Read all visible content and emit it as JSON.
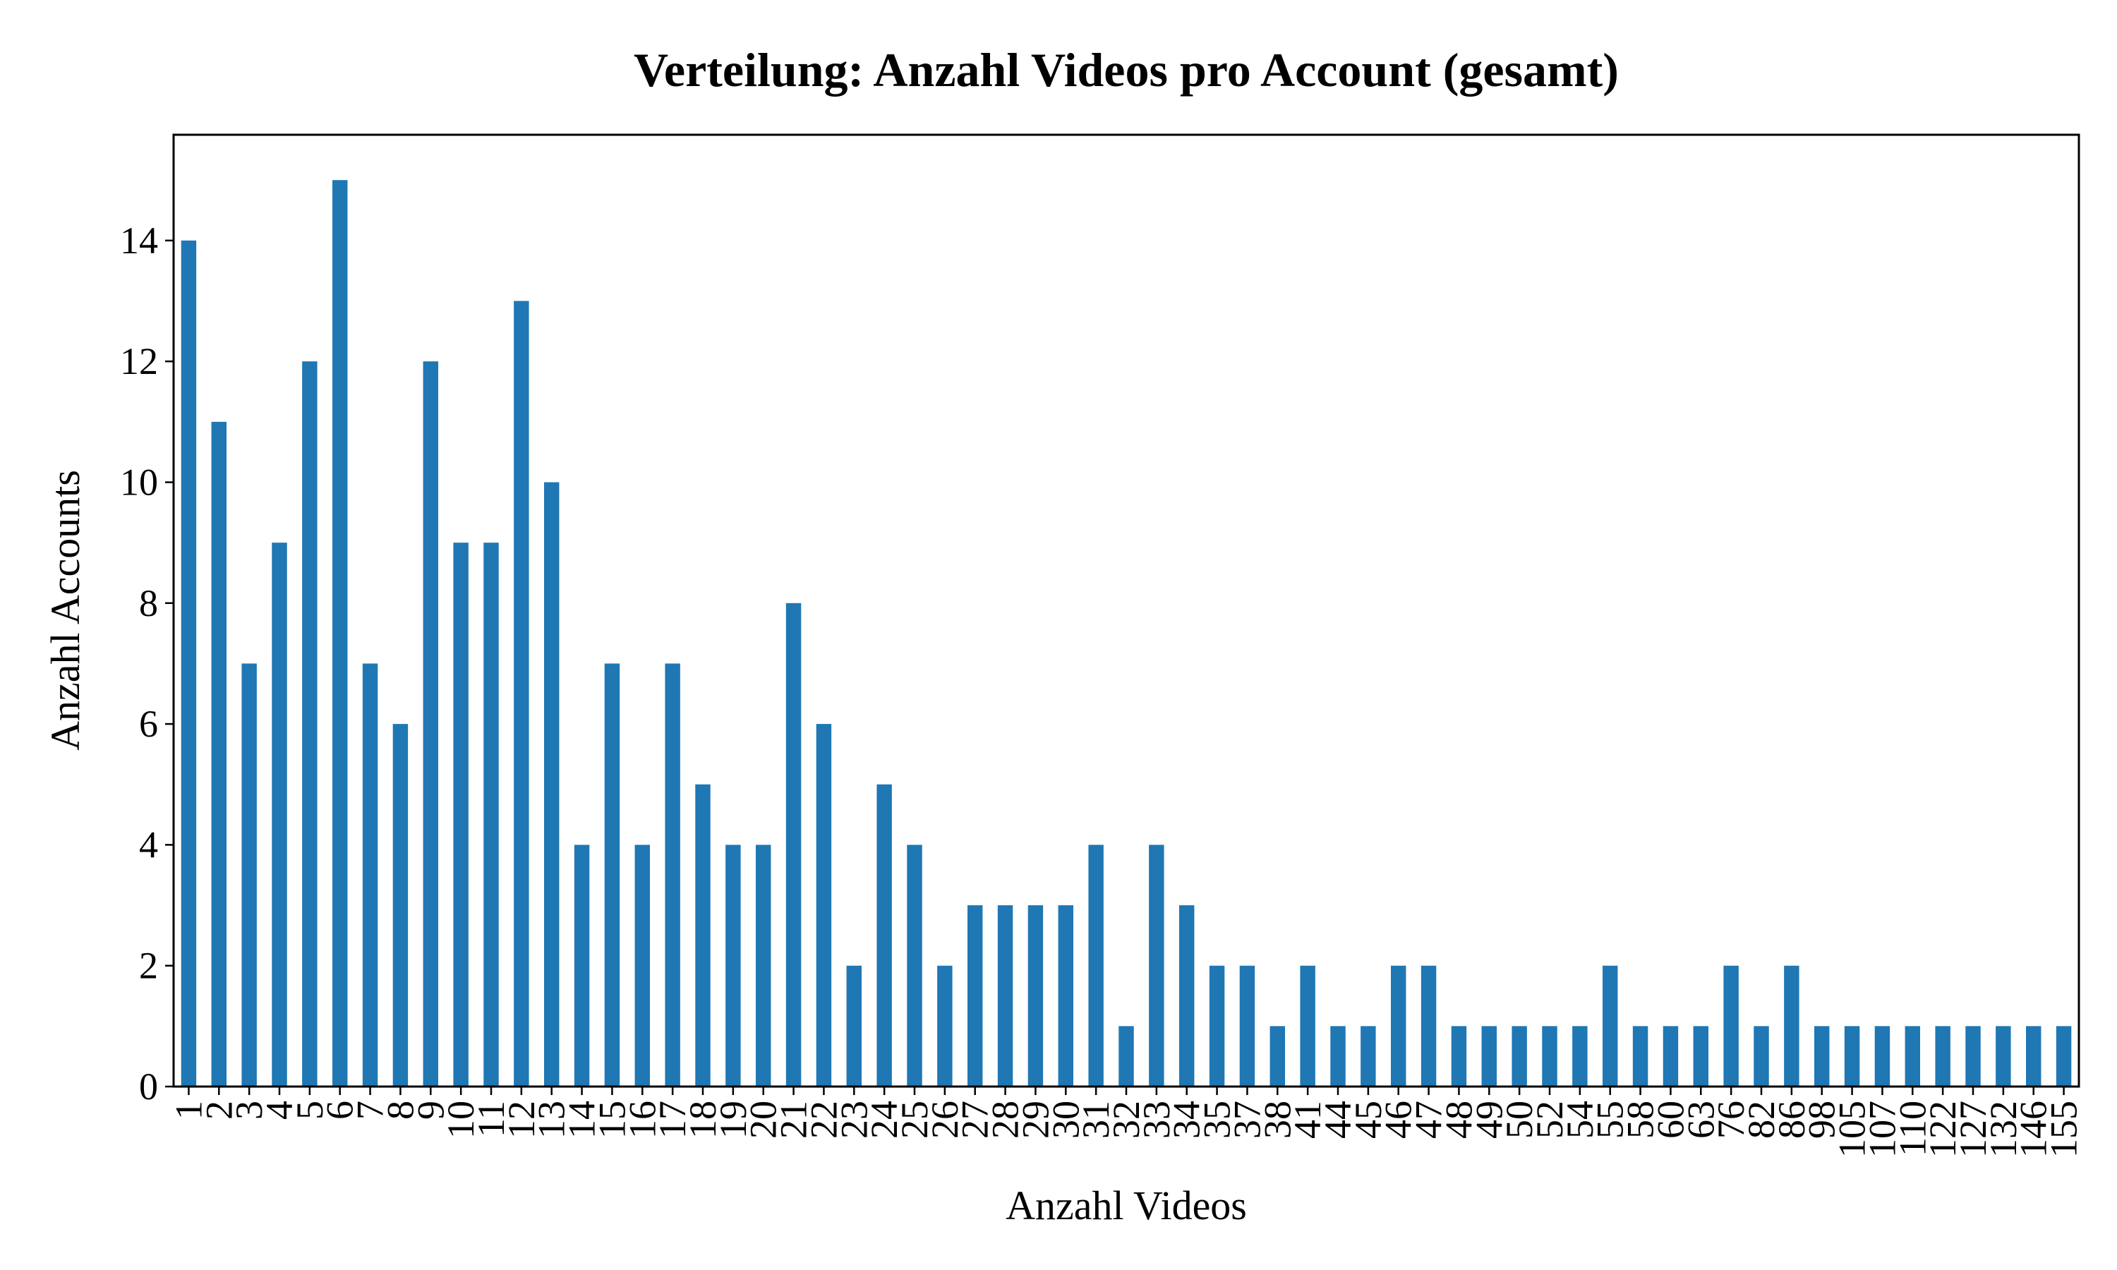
{
  "chart_data": {
    "type": "bar",
    "title": "Verteilung: Anzahl Videos pro Account (gesamt)",
    "xlabel": "Anzahl Videos",
    "ylabel": "Anzahl Accounts",
    "categories": [
      "1",
      "2",
      "3",
      "4",
      "5",
      "6",
      "7",
      "8",
      "9",
      "10",
      "11",
      "12",
      "13",
      "14",
      "15",
      "16",
      "17",
      "18",
      "19",
      "20",
      "21",
      "22",
      "23",
      "24",
      "25",
      "26",
      "27",
      "28",
      "29",
      "30",
      "31",
      "32",
      "33",
      "34",
      "35",
      "37",
      "38",
      "41",
      "44",
      "45",
      "46",
      "47",
      "48",
      "49",
      "50",
      "52",
      "54",
      "55",
      "58",
      "60",
      "63",
      "76",
      "82",
      "86",
      "98",
      "105",
      "107",
      "110",
      "122",
      "127",
      "132",
      "146",
      "155"
    ],
    "values": [
      14,
      11,
      7,
      9,
      12,
      15,
      7,
      6,
      12,
      9,
      9,
      13,
      10,
      4,
      7,
      4,
      7,
      5,
      4,
      4,
      8,
      6,
      2,
      5,
      4,
      2,
      3,
      3,
      3,
      3,
      4,
      1,
      4,
      3,
      2,
      2,
      1,
      2,
      1,
      1,
      2,
      2,
      1,
      1,
      1,
      1,
      1,
      2,
      1,
      1,
      1,
      2,
      1,
      2,
      1,
      1,
      1,
      1,
      1,
      1,
      1,
      1,
      1
    ],
    "yticks": [
      0,
      2,
      4,
      6,
      8,
      10,
      12,
      14
    ],
    "ylim": [
      0,
      15.75
    ],
    "grid": false,
    "legend": "none",
    "bar_color": "#1f77b4"
  }
}
